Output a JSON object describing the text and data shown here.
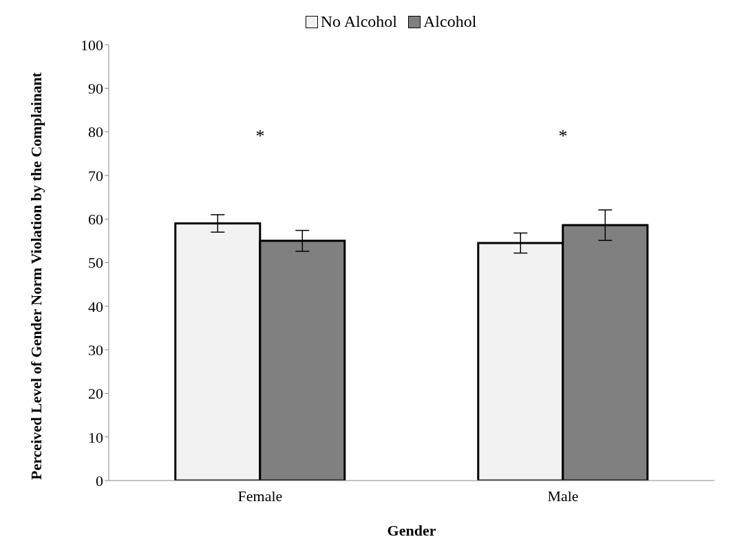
{
  "chart_data": {
    "type": "bar",
    "xlabel": "Gender",
    "ylabel": "Perceived Level of Gender Norm Violation by the Complainant",
    "categories": [
      "Female",
      "Male"
    ],
    "series": [
      {
        "name": "No Alcohol",
        "color": "#f2f2f2",
        "values": [
          59,
          54.5
        ],
        "errors": [
          2,
          2.3
        ]
      },
      {
        "name": "Alcohol",
        "color": "#808080",
        "values": [
          55,
          58.6
        ],
        "errors": [
          2.4,
          3.5
        ]
      }
    ],
    "ylim": [
      0,
      100
    ],
    "yticks": [
      0,
      10,
      20,
      30,
      40,
      50,
      60,
      70,
      80,
      90,
      100
    ],
    "grid": false,
    "legend": "top",
    "annotations": [
      "*",
      "*"
    ]
  }
}
